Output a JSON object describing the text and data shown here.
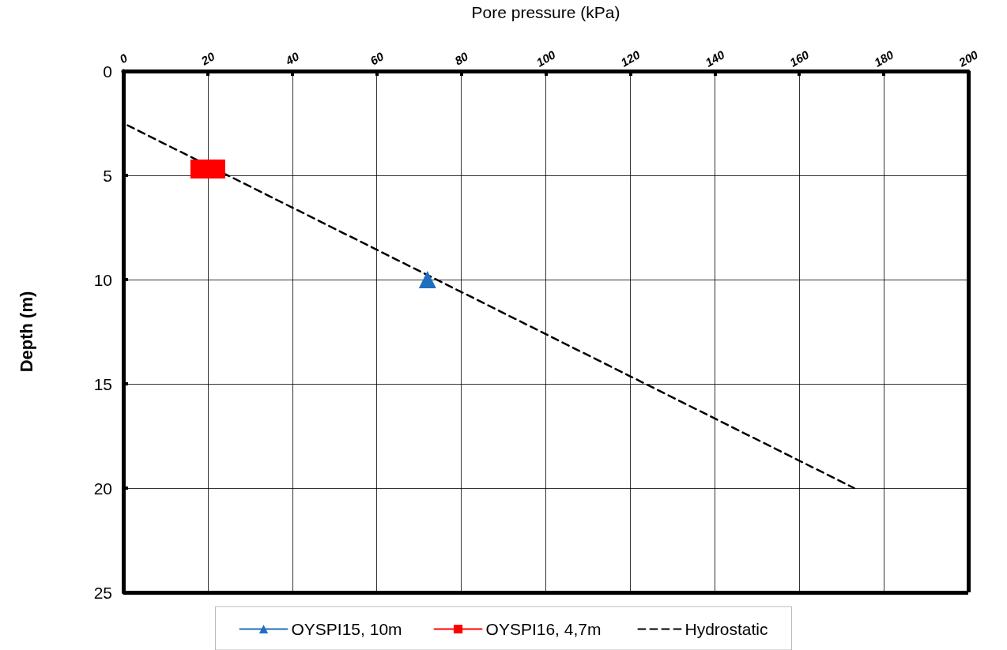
{
  "chart_data": {
    "type": "line",
    "xlabel": "Pore pressure (kPa)",
    "ylabel": "Depth (m)",
    "xlim": [
      0,
      200
    ],
    "xticks": [
      0,
      20,
      40,
      60,
      80,
      100,
      120,
      140,
      160,
      180,
      200
    ],
    "ylim": [
      25,
      0
    ],
    "yticks": [
      0,
      5,
      10,
      15,
      20,
      25
    ],
    "grid": true,
    "legend": "bottom",
    "series": [
      {
        "name": "OYSPI15, 10m",
        "color": "#1f6fbf",
        "x": [
          72
        ],
        "values": [
          10
        ],
        "marker": "triangle",
        "line_style": "solid"
      },
      {
        "name": "OYSPI16, 4,7m",
        "color": "#ff0000",
        "x": [
          20
        ],
        "values": [
          4.7
        ],
        "marker": "square",
        "line_style": "solid"
      },
      {
        "name": "Hydrostatic",
        "color": "#000000",
        "x": [
          0,
          173
        ],
        "values": [
          2.5,
          20
        ],
        "marker": "none",
        "line_style": "dashed"
      }
    ]
  }
}
